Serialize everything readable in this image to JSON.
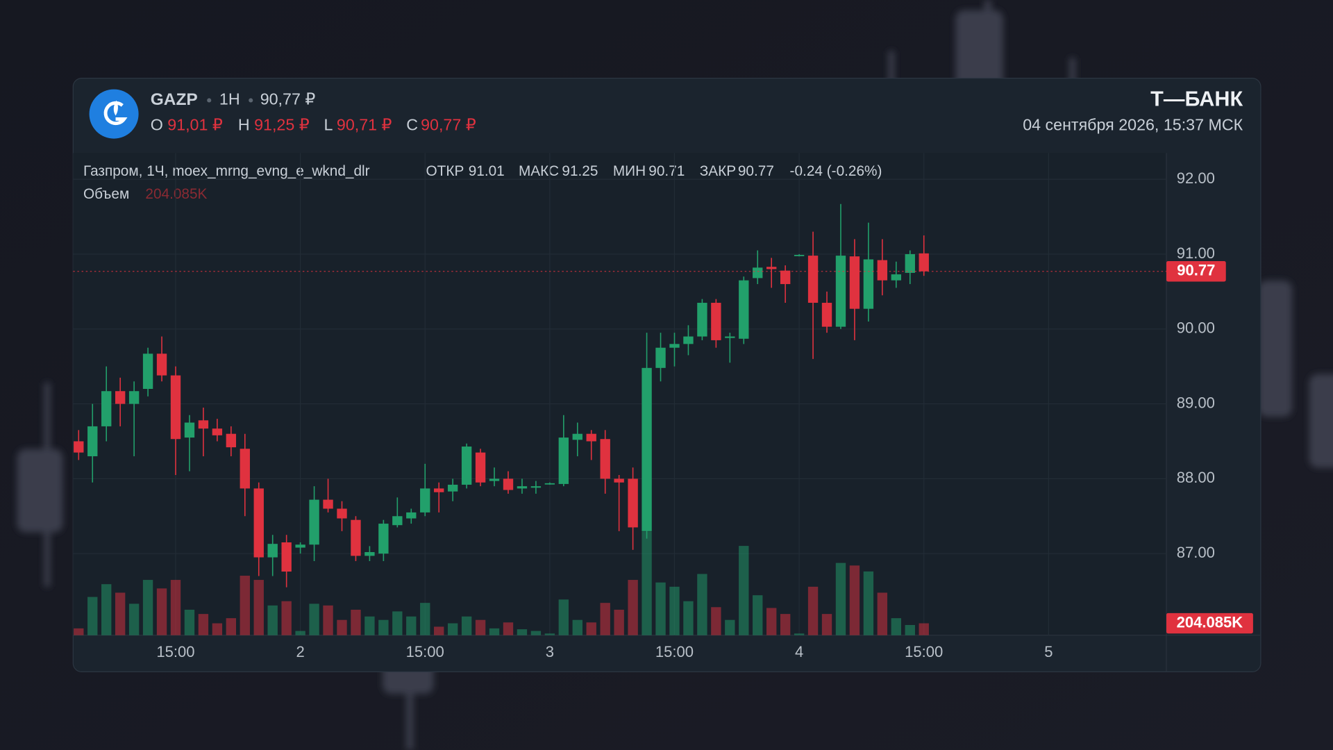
{
  "header": {
    "symbol": "GAZP",
    "interval": "1H",
    "price": "90,77 ₽",
    "ohlc": [
      {
        "key": "O",
        "value": "91,01 ₽"
      },
      {
        "key": "H",
        "value": "91,25 ₽"
      },
      {
        "key": "L",
        "value": "90,71 ₽"
      },
      {
        "key": "C",
        "value": "90,77 ₽"
      }
    ],
    "brand": "Т—БАНК",
    "datetime": "04 сентября 2026, 15:37 МСК"
  },
  "chart_data": {
    "type": "candlestick",
    "legend": {
      "name": "Газпром, 1Ч, moex_mrng_evng_e_wknd_dlr",
      "fields": [
        {
          "key": "ОТКР",
          "value": "91.01"
        },
        {
          "key": "МАКС",
          "value": "91.25"
        },
        {
          "key": "МИН",
          "value": "90.71"
        },
        {
          "key": "ЗАКР",
          "value": "90.77"
        }
      ],
      "change": "-0.24 (-0.26%)",
      "volume_key": "Объем"
    },
    "volume_last_label": "204.085K",
    "up_color": "#22a06b",
    "down_color": "#e0323f",
    "xlim": [
      -0.4,
      78.5
    ],
    "xticks": [
      {
        "value": 7,
        "label": "15:00"
      },
      {
        "value": 16,
        "label": "2"
      },
      {
        "value": 25,
        "label": "15:00"
      },
      {
        "value": 34,
        "label": "3"
      },
      {
        "value": 43,
        "label": "15:00"
      },
      {
        "value": 52,
        "label": "4"
      },
      {
        "value": 61,
        "label": "15:00"
      },
      {
        "value": 70,
        "label": "5"
      }
    ],
    "ylim": [
      85.91,
      92.35
    ],
    "yticks": [
      {
        "value": 87,
        "label": "87.00"
      },
      {
        "value": 88,
        "label": "88.00"
      },
      {
        "value": 89,
        "label": "89.00"
      },
      {
        "value": 90,
        "label": "90.00"
      },
      {
        "value": 91,
        "label": "91.00"
      },
      {
        "value": 92,
        "label": "92.00"
      }
    ],
    "volume_ylim": [
      0,
      8265000
    ],
    "last_price": {
      "value": 90.77,
      "label": "90.77"
    },
    "grid": true,
    "open": [
      88.5,
      88.3,
      88.7,
      89.17,
      89.0,
      89.2,
      89.67,
      89.38,
      88.55,
      88.78,
      88.67,
      88.6,
      88.4,
      87.87,
      86.95,
      87.15,
      87.08,
      87.12,
      87.72,
      87.6,
      87.45,
      86.97,
      87.0,
      87.38,
      87.47,
      87.55,
      87.87,
      87.83,
      87.92,
      88.35,
      87.97,
      88.0,
      87.87,
      87.88,
      87.93,
      87.93,
      88.52,
      88.6,
      88.53,
      88.0,
      88.0,
      87.3,
      89.48,
      89.75,
      89.8,
      89.9,
      90.35,
      89.88,
      89.87,
      90.68,
      90.83,
      90.78,
      90.98,
      90.98,
      90.35,
      90.03,
      90.97,
      90.27,
      90.92,
      90.65,
      90.75,
      91.01
    ],
    "high": [
      88.65,
      89.0,
      89.5,
      89.35,
      89.3,
      89.75,
      89.9,
      89.5,
      88.85,
      88.95,
      88.8,
      88.7,
      88.6,
      87.95,
      87.25,
      87.25,
      87.15,
      87.9,
      88.0,
      87.7,
      87.5,
      87.1,
      87.45,
      87.75,
      87.6,
      88.2,
      87.95,
      88.0,
      88.47,
      88.4,
      88.15,
      88.1,
      88.0,
      87.97,
      87.95,
      88.85,
      88.75,
      88.65,
      88.65,
      88.05,
      88.15,
      89.95,
      89.95,
      89.95,
      90.05,
      90.4,
      90.4,
      89.95,
      90.7,
      91.05,
      90.95,
      90.85,
      91.0,
      91.3,
      90.5,
      91.67,
      91.2,
      91.42,
      91.2,
      90.9,
      91.05,
      91.25
    ],
    "low": [
      88.25,
      87.95,
      88.5,
      88.7,
      88.3,
      89.1,
      89.3,
      88.05,
      88.1,
      88.3,
      88.5,
      88.3,
      87.5,
      86.7,
      86.7,
      86.55,
      87.0,
      86.9,
      87.55,
      87.3,
      86.9,
      86.9,
      86.9,
      87.35,
      87.4,
      87.5,
      87.55,
      87.7,
      87.87,
      87.9,
      87.9,
      87.8,
      87.8,
      87.8,
      87.92,
      87.9,
      88.3,
      88.25,
      87.8,
      87.3,
      87.05,
      87.2,
      89.3,
      89.5,
      89.65,
      89.85,
      89.75,
      89.55,
      89.8,
      90.6,
      90.55,
      90.35,
      90.97,
      89.6,
      89.95,
      90.0,
      89.85,
      90.1,
      90.45,
      90.55,
      90.6,
      90.71
    ],
    "close": [
      88.35,
      88.7,
      89.17,
      89.0,
      89.17,
      89.67,
      89.38,
      88.53,
      88.75,
      88.67,
      88.58,
      88.42,
      87.87,
      86.95,
      87.13,
      86.76,
      87.12,
      87.72,
      87.6,
      87.47,
      86.97,
      87.02,
      87.4,
      87.5,
      87.55,
      87.87,
      87.82,
      87.92,
      88.43,
      87.95,
      88.0,
      87.85,
      87.9,
      87.9,
      87.94,
      88.55,
      88.6,
      88.5,
      88.0,
      87.95,
      87.35,
      89.48,
      89.75,
      89.8,
      89.9,
      90.35,
      89.85,
      89.9,
      90.65,
      90.82,
      90.8,
      90.6,
      90.99,
      90.35,
      90.03,
      90.98,
      90.27,
      90.93,
      90.65,
      90.73,
      91.0,
      90.77
    ],
    "volume": [
      117000,
      656000,
      875000,
      729000,
      539000,
      948000,
      802000,
      948000,
      437000,
      364000,
      204000,
      292000,
      1020000,
      948000,
      510000,
      583000,
      73000,
      539000,
      510000,
      262000,
      437000,
      321000,
      262000,
      408000,
      321000,
      554000,
      146000,
      204000,
      321000,
      262000,
      117000,
      219000,
      102000,
      73000,
      29000,
      612000,
      262000,
      219000,
      554000,
      437000,
      948000,
      1779000,
      904000,
      831000,
      583000,
      1050000,
      481000,
      262000,
      1531000,
      685000,
      467000,
      364000,
      29000,
      831000,
      364000,
      1239000,
      1195000,
      1093000,
      729000,
      292000,
      175000,
      204085
    ]
  }
}
